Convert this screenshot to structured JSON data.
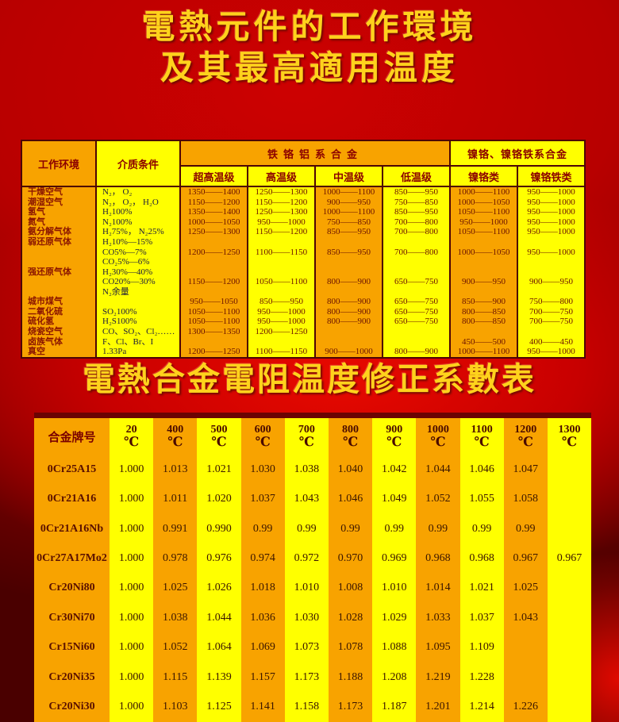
{
  "titles": {
    "main_line1": "電熱元件的工作環境",
    "main_line2": "及其最高適用温度",
    "coeff": "電熱合金電阻温度修正系數表"
  },
  "colors": {
    "background_red": "#c00000",
    "column_orange": "#f8a300",
    "column_yellow": "#ffff00",
    "title_yellow": "#ffd21c",
    "table_border": "#4d0505",
    "header_text": "#8b0000"
  },
  "table1": {
    "header": {
      "env": "工作环境",
      "medium": "介质条件",
      "group_fecral": "铁铬铝系合金",
      "group_nicr": "镍铬、镍铬铁系合金",
      "sub": [
        "超高温级",
        "高温级",
        "中温级",
        "低温级",
        "镍铬类",
        "镍铬铁类"
      ]
    },
    "columns": [
      [
        "干燥空气",
        "潮湿空气",
        "氢气",
        "氮气",
        "氨分解气体",
        "弱还原气体",
        "",
        "",
        "强还原气体",
        "",
        "",
        "城市煤气",
        "二氧化硫",
        "硫化氢",
        "烧瓷空气",
        "卤族气体",
        "真空"
      ],
      [
        "N₂， O₂",
        "N₂， O₂， H₂O",
        "H₂100%",
        "N₂100%",
        "H₂75%， N₂25%",
        "H₂10%—15%",
        "CO5%—7%",
        "CO₂5%—6%",
        "H₂30%—40%",
        "CO20%—30%",
        "N₂余量",
        "",
        "SO₂100%",
        "H₂S100%",
        "CO、SO₂、Cl₂……",
        "F、Cl、Br、I",
        "1.33Pa"
      ],
      [
        "1350——1400",
        "1150——1200",
        "1350——1400",
        "1000——1050",
        "1250——1300",
        "",
        "1200——1250",
        "",
        "",
        "1150——1200",
        "",
        "950——1050",
        "1050——1100",
        "1050——1100",
        "1300——1350",
        "",
        "1200——1250"
      ],
      [
        "1250——1300",
        "1150——1200",
        "1250——1300",
        "950——1000",
        "1150——1200",
        "",
        "1100——1150",
        "",
        "",
        "1050——1100",
        "",
        "850——950",
        "950——1000",
        "950——1000",
        "1200——1250",
        "",
        "1100——1150"
      ],
      [
        "1000——1100",
        "900——950",
        "1000——1100",
        "750——850",
        "850——950",
        "",
        "850——950",
        "",
        "",
        "800——900",
        "",
        "800——900",
        "800——900",
        "800——900",
        "",
        "",
        "900——1000"
      ],
      [
        "850——950",
        "750——850",
        "850——950",
        "700——800",
        "700——800",
        "",
        "700——800",
        "",
        "",
        "650——750",
        "",
        "650——750",
        "650——750",
        "650——750",
        "",
        "",
        "800——900"
      ],
      [
        "1000——1100",
        "1000——1050",
        "1050——1100",
        "950——1000",
        "1050——1100",
        "",
        "1000——1050",
        "",
        "",
        "900——950",
        "",
        "850——900",
        "800——850",
        "800——850",
        "",
        "450——500",
        "1000——1100"
      ],
      [
        "950——1000",
        "950——1000",
        "950——1000",
        "950——1000",
        "950——1000",
        "",
        "950——1000",
        "",
        "",
        "900——950",
        "",
        "750——800",
        "700——750",
        "700——750",
        "",
        "400——450",
        "950——1000"
      ]
    ]
  },
  "table2": {
    "header_first": "合金牌号",
    "deg": "℃",
    "temps": [
      "20",
      "400",
      "500",
      "600",
      "700",
      "800",
      "900",
      "1000",
      "1100",
      "1200",
      "1300"
    ],
    "rows": [
      {
        "name": "0Cr25A15",
        "values": [
          "1.000",
          "1.013",
          "1.021",
          "1.030",
          "1.038",
          "1.040",
          "1.042",
          "1.044",
          "1.046",
          "1.047",
          ""
        ]
      },
      {
        "name": "0Cr21A16",
        "values": [
          "1.000",
          "1.011",
          "1.020",
          "1.037",
          "1.043",
          "1.046",
          "1.049",
          "1.052",
          "1.055",
          "1.058",
          ""
        ]
      },
      {
        "name": "0Cr21A16Nb",
        "values": [
          "1.000",
          "0.991",
          "0.990",
          "0.99",
          "0.99",
          "0.99",
          "0.99",
          "0.99",
          "0.99",
          "0.99",
          ""
        ]
      },
      {
        "name": "0Cr27A17Mo2",
        "values": [
          "1.000",
          "0.978",
          "0.976",
          "0.974",
          "0.972",
          "0.970",
          "0.969",
          "0.968",
          "0.968",
          "0.967",
          "0.967"
        ]
      },
      {
        "name": "Cr20Ni80",
        "values": [
          "1.000",
          "1.025",
          "1.026",
          "1.018",
          "1.010",
          "1.008",
          "1.010",
          "1.014",
          "1.021",
          "1.025",
          ""
        ]
      },
      {
        "name": "Cr30Ni70",
        "values": [
          "1.000",
          "1.038",
          "1.044",
          "1.036",
          "1.030",
          "1.028",
          "1.029",
          "1.033",
          "1.037",
          "1.043",
          ""
        ]
      },
      {
        "name": "Cr15Ni60",
        "values": [
          "1.000",
          "1.052",
          "1.064",
          "1.069",
          "1.073",
          "1.078",
          "1.088",
          "1.095",
          "1.109",
          "",
          ""
        ]
      },
      {
        "name": "Cr20Ni35",
        "values": [
          "1.000",
          "1.115",
          "1.139",
          "1.157",
          "1.173",
          "1.188",
          "1.208",
          "1.219",
          "1.228",
          "",
          ""
        ]
      },
      {
        "name": "Cr20Ni30",
        "values": [
          "1.000",
          "1.103",
          "1.125",
          "1.141",
          "1.158",
          "1.173",
          "1.187",
          "1.201",
          "1.214",
          "1.226",
          ""
        ]
      }
    ]
  }
}
